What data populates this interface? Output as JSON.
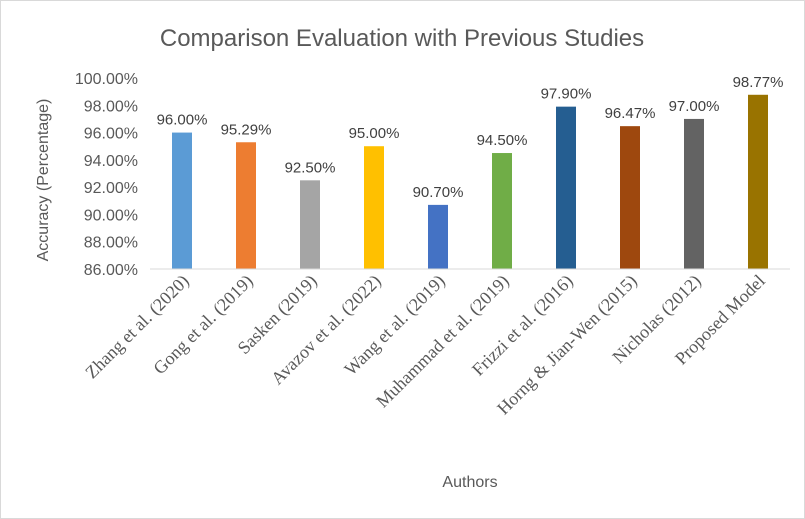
{
  "chart_data": {
    "type": "bar",
    "title": "Comparison Evaluation with Previous Studies",
    "xlabel": "Authors",
    "ylabel": "Accuracy (Percentage)",
    "ylim": [
      86,
      100
    ],
    "ytick_step": 2,
    "ytick_labels": [
      "86.00%",
      "88.00%",
      "90.00%",
      "92.00%",
      "94.00%",
      "96.00%",
      "98.00%",
      "100.00%"
    ],
    "categories": [
      "Zhang et al. (2020)",
      "Gong et al. (2019)",
      "Sasken (2019)",
      "Avazov et al. (2022)",
      "Wang et al. (2019)",
      "Muhammad et al. (2019)",
      "Frizzi et al. (2016)",
      "Horng & Jian-Wen (2015)",
      "Nicholas (2012)",
      "Proposed Model"
    ],
    "values": [
      96.0,
      95.29,
      92.5,
      95.0,
      90.7,
      94.5,
      97.9,
      96.47,
      97.0,
      98.77
    ],
    "data_labels": [
      "96.00%",
      "95.29%",
      "92.50%",
      "95.00%",
      "90.70%",
      "94.50%",
      "97.90%",
      "96.47%",
      "97.00%",
      "98.77%"
    ],
    "colors": [
      "#5B9BD5",
      "#ED7D31",
      "#A5A5A5",
      "#FFC000",
      "#4472C4",
      "#70AD47",
      "#255E91",
      "#9E480E",
      "#636363",
      "#997300"
    ],
    "grid": false,
    "legend": "none"
  }
}
